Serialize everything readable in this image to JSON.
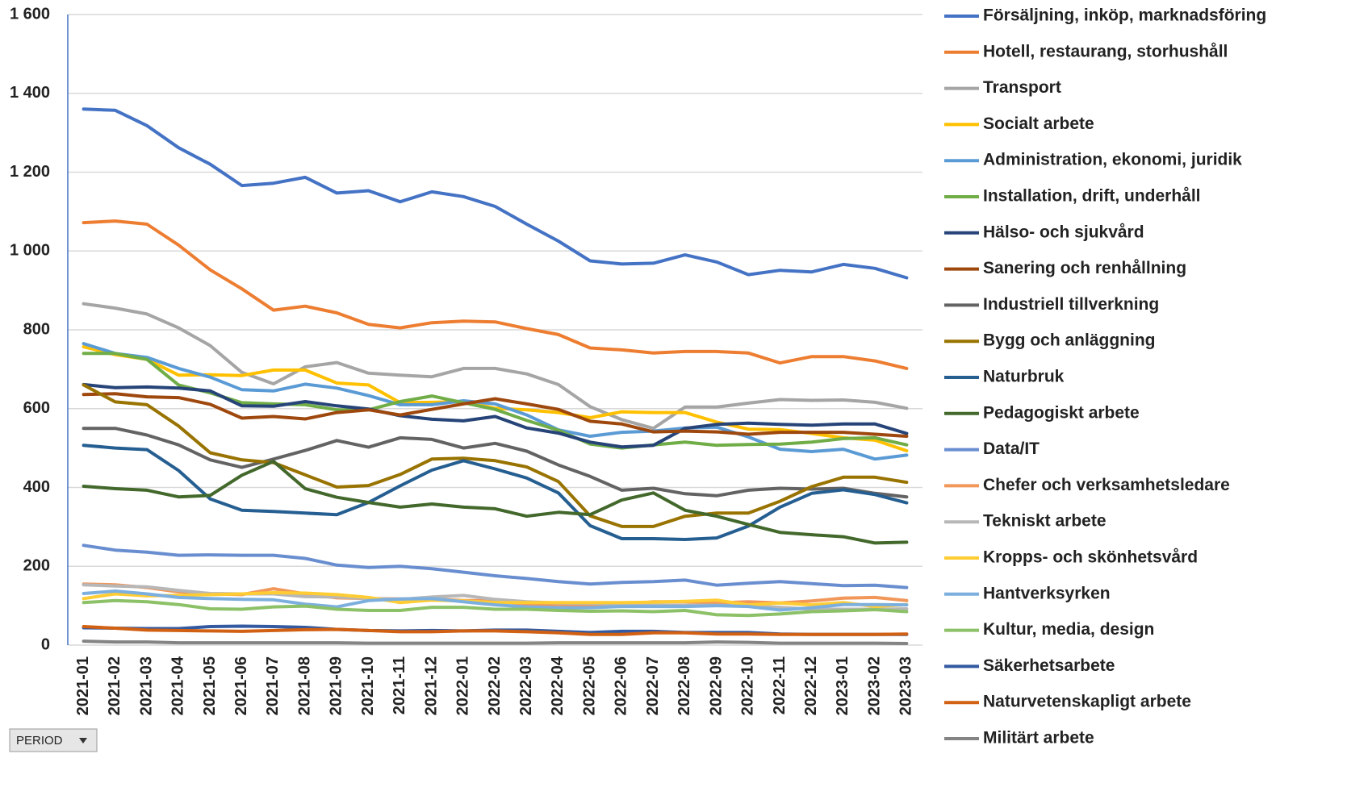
{
  "chart_data": {
    "type": "line",
    "categories": [
      "2021-01",
      "2021-02",
      "2021-03",
      "2021-04",
      "2021-05",
      "2021-06",
      "2021-07",
      "2021-08",
      "2021-09",
      "2021-10",
      "2021-11",
      "2021-12",
      "2022-01",
      "2022-02",
      "2022-03",
      "2022-04",
      "2022-05",
      "2022-06",
      "2022-07",
      "2022-08",
      "2022-09",
      "2022-10",
      "2022-11",
      "2022-12",
      "2023-01",
      "2023-02",
      "2023-03"
    ],
    "ylim": [
      0,
      1600
    ],
    "yticks": [
      0,
      200,
      400,
      600,
      800,
      {
        "value": 1000,
        "label": "1 000"
      },
      {
        "value": 1200,
        "label": "1 200"
      },
      {
        "value": 1400,
        "label": "1 400"
      },
      {
        "value": 1600,
        "label": "1 600"
      }
    ],
    "grid": true,
    "legend": "right",
    "series": [
      {
        "name": "Försäljning, inköp, marknadsföring",
        "color": "#4472c4",
        "values": [
          1360,
          1357,
          1318,
          1262,
          1220,
          1166,
          1172,
          1187,
          1147,
          1153,
          1125,
          1150,
          1138,
          1113,
          1068,
          1025,
          975,
          967,
          969,
          990,
          972,
          940,
          951,
          947,
          966,
          956,
          932
        ]
      },
      {
        "name": "Hotell, restaurang, storhushåll",
        "color": "#ed7d31",
        "values": [
          1072,
          1076,
          1068,
          1015,
          952,
          904,
          850,
          860,
          843,
          814,
          805,
          818,
          822,
          820,
          803,
          788,
          754,
          749,
          741,
          745,
          745,
          741,
          716,
          732,
          732,
          721,
          702
        ]
      },
      {
        "name": "Transport",
        "color": "#a5a5a5",
        "values": [
          866,
          855,
          840,
          805,
          760,
          692,
          663,
          706,
          717,
          690,
          685,
          681,
          702,
          702,
          688,
          661,
          605,
          572,
          550,
          604,
          604,
          614,
          623,
          621,
          622,
          616,
          601
        ]
      },
      {
        "name": "Socialt arbete",
        "color": "#ffc000",
        "values": [
          757,
          737,
          725,
          685,
          686,
          684,
          698,
          698,
          665,
          660,
          615,
          616,
          618,
          601,
          597,
          590,
          577,
          592,
          590,
          590,
          566,
          548,
          547,
          537,
          526,
          520,
          493
        ]
      },
      {
        "name": "Administration, ekonomi, juridik",
        "color": "#5b9bd5",
        "values": [
          765,
          740,
          730,
          702,
          680,
          648,
          645,
          662,
          652,
          633,
          610,
          610,
          620,
          612,
          584,
          546,
          530,
          540,
          543,
          551,
          553,
          528,
          497,
          491,
          497,
          472,
          482
        ]
      },
      {
        "name": "Installation, drift, underhåll",
        "color": "#70ad47",
        "values": [
          740,
          740,
          725,
          660,
          640,
          615,
          612,
          610,
          597,
          597,
          618,
          632,
          615,
          598,
          570,
          545,
          510,
          500,
          508,
          515,
          507,
          509,
          510,
          515,
          524,
          526,
          508
        ]
      },
      {
        "name": "Hälso- och sjukvård",
        "color": "#264478",
        "values": [
          661,
          653,
          655,
          652,
          645,
          607,
          606,
          618,
          607,
          599,
          582,
          573,
          569,
          580,
          551,
          538,
          515,
          503,
          507,
          550,
          560,
          563,
          560,
          558,
          561,
          561,
          537
        ]
      },
      {
        "name": "Sanering och renhållning",
        "color": "#9e480e",
        "values": [
          636,
          638,
          630,
          628,
          611,
          576,
          580,
          574,
          590,
          597,
          584,
          598,
          612,
          625,
          612,
          598,
          568,
          561,
          541,
          543,
          541,
          535,
          540,
          540,
          540,
          535,
          530
        ]
      },
      {
        "name": "Industriell tillverkning",
        "color": "#636363",
        "values": [
          550,
          550,
          533,
          508,
          470,
          451,
          472,
          494,
          519,
          502,
          526,
          522,
          500,
          512,
          492,
          457,
          428,
          393,
          398,
          384,
          379,
          393,
          398,
          396,
          398,
          385,
          376
        ]
      },
      {
        "name": "Bygg och anläggning",
        "color": "#997300",
        "values": [
          660,
          617,
          610,
          556,
          488,
          470,
          463,
          432,
          401,
          405,
          433,
          472,
          474,
          468,
          452,
          415,
          328,
          301,
          301,
          327,
          335,
          335,
          365,
          402,
          426,
          426,
          413
        ]
      },
      {
        "name": "Naturbruk",
        "color": "#255e91",
        "values": [
          507,
          500,
          496,
          443,
          371,
          342,
          339,
          335,
          331,
          362,
          404,
          444,
          468,
          447,
          424,
          386,
          303,
          270,
          270,
          268,
          272,
          302,
          350,
          385,
          394,
          382,
          361
        ]
      },
      {
        "name": "Pedagogiskt arbete",
        "color": "#43682b",
        "values": [
          403,
          397,
          393,
          376,
          380,
          431,
          466,
          397,
          375,
          362,
          350,
          358,
          350,
          346,
          327,
          337,
          331,
          368,
          386,
          342,
          327,
          306,
          286,
          280,
          275,
          259,
          261
        ]
      },
      {
        "name": "Data/IT",
        "color": "#698ed0",
        "values": [
          253,
          241,
          236,
          228,
          229,
          228,
          228,
          220,
          203,
          197,
          200,
          194,
          185,
          176,
          169,
          161,
          155,
          159,
          161,
          165,
          152,
          157,
          161,
          156,
          151,
          152,
          146
        ]
      },
      {
        "name": "Chefer och verksamhetsledare",
        "color": "#f1975a",
        "values": [
          155,
          153,
          146,
          135,
          130,
          128,
          143,
          130,
          120,
          118,
          117,
          117,
          113,
          113,
          103,
          103,
          101,
          103,
          110,
          110,
          107,
          110,
          107,
          112,
          119,
          121,
          113
        ]
      },
      {
        "name": "Tekniskt arbete",
        "color": "#b7b7b7",
        "values": [
          153,
          150,
          148,
          139,
          131,
          130,
          130,
          123,
          122,
          118,
          116,
          122,
          126,
          116,
          110,
          107,
          106,
          104,
          101,
          101,
          101,
          99,
          96,
          91,
          91,
          91,
          92
        ]
      },
      {
        "name": "Kropps- och skönhetsvård",
        "color": "#ffcd33",
        "values": [
          118,
          130,
          125,
          126,
          128,
          130,
          133,
          132,
          128,
          121,
          108,
          114,
          112,
          108,
          108,
          108,
          108,
          108,
          109,
          111,
          114,
          102,
          107,
          102,
          108,
          98,
          103
        ]
      },
      {
        "name": "Hantverksyrken",
        "color": "#7cafdd",
        "values": [
          131,
          137,
          130,
          121,
          118,
          116,
          115,
          104,
          97,
          113,
          117,
          118,
          110,
          102,
          97,
          95,
          95,
          98,
          98,
          98,
          100,
          98,
          89,
          95,
          103,
          103,
          102
        ]
      },
      {
        "name": "Kultur, media, design",
        "color": "#8cc168",
        "values": [
          108,
          113,
          110,
          103,
          92,
          91,
          97,
          99,
          91,
          88,
          88,
          96,
          96,
          91,
          91,
          88,
          86,
          87,
          85,
          88,
          77,
          75,
          79,
          85,
          87,
          90,
          85
        ]
      },
      {
        "name": "Säkerhetsarbete",
        "color": "#335aa1",
        "values": [
          44,
          43,
          42,
          42,
          47,
          48,
          47,
          45,
          40,
          37,
          36,
          37,
          36,
          38,
          38,
          35,
          32,
          35,
          35,
          32,
          32,
          32,
          28,
          27,
          27,
          27,
          27
        ]
      },
      {
        "name": "Naturvetenskapligt arbete",
        "color": "#d26012",
        "values": [
          47,
          43,
          38,
          37,
          36,
          35,
          37,
          39,
          40,
          37,
          34,
          34,
          36,
          36,
          34,
          31,
          27,
          27,
          31,
          31,
          28,
          28,
          27,
          27,
          27,
          27,
          28
        ]
      },
      {
        "name": "Militärt arbete",
        "color": "#848484",
        "values": [
          10,
          8,
          8,
          6,
          6,
          6,
          6,
          6,
          6,
          5,
          5,
          5,
          5,
          5,
          5,
          6,
          6,
          6,
          6,
          6,
          8,
          7,
          5,
          5,
          5,
          5,
          4
        ]
      }
    ]
  },
  "filter_button": "PERIOD"
}
